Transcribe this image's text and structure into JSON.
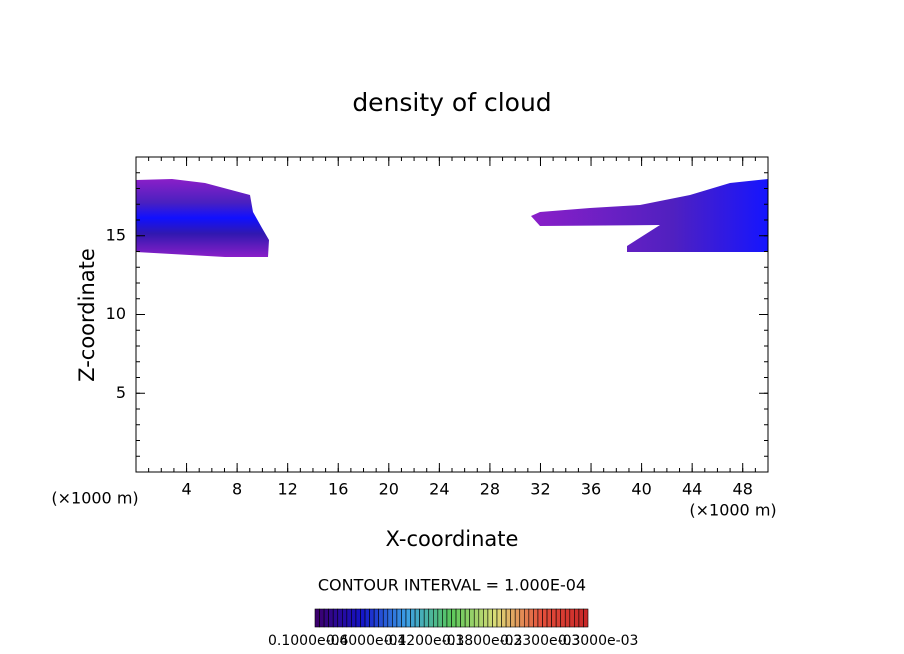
{
  "chart_data": {
    "type": "contour",
    "title": "density of cloud",
    "x_label": "X-coordinate",
    "y_label": "Z-coordinate",
    "x_unit": "(×1000 m)",
    "y_unit": "(×1000 m)",
    "xlim": [
      0,
      50
    ],
    "xticks": [
      4,
      8,
      12,
      16,
      20,
      24,
      28,
      32,
      36,
      40,
      44,
      48
    ],
    "ylim": [
      0,
      20
    ],
    "yticks": [
      5,
      10,
      15
    ],
    "contour_interval_label": "CONTOUR INTERVAL = 1.000E-04",
    "colorbar_labels": [
      "0.1000e-04",
      "0.6000e-04",
      "0.1200e-03",
      "0.1800e-03",
      "0.2300e-03",
      "0.3000e-03"
    ]
  }
}
